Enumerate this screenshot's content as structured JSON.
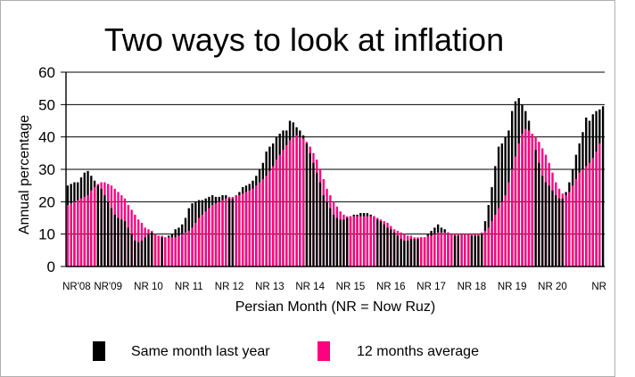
{
  "chart_data": {
    "type": "bar",
    "title": "Two ways to look at inflation",
    "xlabel": "Persian Month (NR = Now Ruz)",
    "ylabel": "Annual percentage",
    "ylim": [
      0,
      60
    ],
    "yticks": [
      "0",
      "10",
      "20",
      "30",
      "40",
      "50",
      "60"
    ],
    "grid": "horizontal",
    "legend_position": "bottom",
    "colors": {
      "series_0": "#000000",
      "series_1": "#ff0080"
    },
    "x_labels": [
      "NR'08",
      "NR'09",
      "NR 10",
      "NR 11",
      "NR 12",
      "NR 13",
      "NR 14",
      "NR 15",
      "NR 16",
      "NR 17",
      "NR 18",
      "NR 19",
      "NR 20",
      "NR"
    ],
    "series": [
      {
        "name": "Same month last year",
        "values": [
          25,
          25.5,
          26,
          26,
          27.5,
          29,
          29.5,
          28,
          26.5,
          25,
          24,
          22,
          20,
          18,
          16,
          15,
          14.5,
          14,
          12,
          10,
          8,
          7.5,
          8,
          9,
          10,
          10.5,
          10,
          9.5,
          9,
          9,
          9.5,
          10,
          11.5,
          12,
          13,
          15,
          18,
          19.5,
          20,
          20.5,
          20.5,
          21,
          21.5,
          22,
          21.5,
          21.5,
          22,
          22,
          21,
          21,
          22,
          23,
          24.5,
          25,
          25.5,
          26.5,
          28,
          30,
          32,
          35.5,
          37,
          38,
          40,
          41,
          42,
          42,
          45,
          44.5,
          43,
          42,
          40.5,
          38,
          35,
          32,
          29,
          26,
          22,
          20,
          18,
          16,
          15,
          14.5,
          14.5,
          15,
          15.5,
          16,
          16,
          16.5,
          16.5,
          16.5,
          16,
          15.5,
          14.5,
          14,
          13,
          12,
          11.5,
          10.5,
          9.5,
          8.5,
          8,
          8,
          8.5,
          8.5,
          8.5,
          9,
          9,
          10,
          11,
          12,
          13,
          12,
          11.5,
          10.5,
          10,
          9.5,
          9.5,
          10,
          10,
          10,
          9.5,
          9.5,
          9.5,
          10,
          14,
          19,
          24.5,
          31,
          37,
          38,
          40,
          42,
          48,
          51,
          52,
          50,
          48,
          45,
          41,
          36,
          32,
          28,
          26,
          25,
          23.5,
          22,
          21,
          21,
          23,
          26,
          30,
          34.5,
          38,
          41.5,
          46,
          45,
          47,
          48,
          48.5,
          49.5
        ],
        "color": "#000000"
      },
      {
        "name": "12 months average",
        "values": [
          19,
          19.5,
          20,
          20.5,
          21,
          21.5,
          22,
          23.5,
          24.5,
          25.5,
          26,
          26,
          25.5,
          25,
          24,
          23,
          22,
          21,
          19,
          17.5,
          16,
          14.5,
          13.5,
          12,
          11.5,
          11,
          10,
          9.5,
          9.5,
          9,
          9,
          9,
          9,
          9.5,
          10,
          10.5,
          11,
          12,
          13.5,
          15,
          16,
          17,
          18,
          19,
          19.5,
          20,
          20.5,
          21,
          21.5,
          21.5,
          22,
          22,
          22.5,
          23,
          23.5,
          24,
          25,
          26,
          27,
          28,
          29.5,
          31,
          33,
          34.5,
          36,
          37.5,
          39,
          40,
          40.5,
          40,
          39.5,
          38.5,
          37,
          35,
          33,
          30,
          27,
          24,
          22,
          20,
          18.5,
          17,
          16,
          15.5,
          15.5,
          15.5,
          15.5,
          15.5,
          15.5,
          15.5,
          15.5,
          15.5,
          15,
          14.5,
          14,
          13.5,
          12.5,
          11.5,
          11,
          10.5,
          10,
          9.5,
          9.5,
          9,
          9,
          9,
          9,
          9.5,
          9.5,
          10,
          10.5,
          10.5,
          10.5,
          10.5,
          10,
          10,
          10,
          10,
          10,
          10,
          10,
          10,
          10,
          10.5,
          11,
          12,
          14,
          16,
          18,
          20,
          22,
          26,
          30,
          34,
          38,
          41,
          42.5,
          42,
          41,
          40,
          38.5,
          36.5,
          34.5,
          32,
          29,
          26,
          24,
          22.5,
          22,
          23,
          25,
          27,
          29,
          30,
          31,
          32,
          33.5,
          35.5,
          38
        ],
        "color": "#ff0080"
      }
    ]
  }
}
